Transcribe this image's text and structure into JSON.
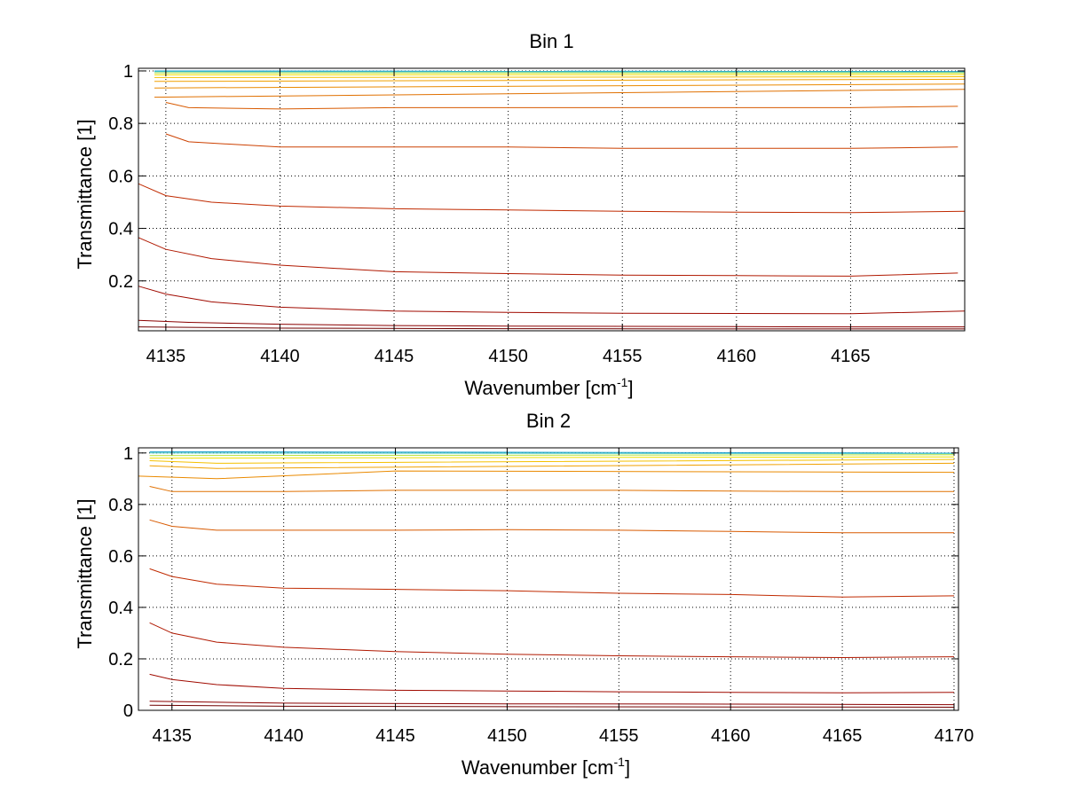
{
  "chart_data": [
    {
      "type": "line",
      "title": "Bin 1",
      "xlabel": {
        "main": "Wavenumber [cm",
        "sup": "-1",
        "close": "]"
      },
      "ylabel": "Transmittance [1]",
      "xlim": [
        4133.8,
        4170
      ],
      "ylim": [
        0.01,
        1.01
      ],
      "xticks": [
        4135,
        4140,
        4145,
        4150,
        4155,
        4160,
        4165
      ],
      "yticks": [
        0.2,
        0.4,
        0.6,
        0.8,
        1
      ],
      "ytick_labels": [
        "0.2",
        "0.4",
        "0.6",
        "0.8",
        "1"
      ],
      "grid": true,
      "series": [
        {
          "color": "#1f9fcf",
          "x": [
            4134.5,
            4170
          ],
          "y": [
            1.0,
            0.998
          ]
        },
        {
          "color": "#3cc3c0",
          "x": [
            4134.5,
            4170
          ],
          "y": [
            0.997,
            0.996
          ]
        },
        {
          "color": "#b5e23a",
          "x": [
            4134.5,
            4170
          ],
          "y": [
            0.992,
            0.992
          ]
        },
        {
          "color": "#f0e000",
          "x": [
            4134.5,
            4170
          ],
          "y": [
            0.985,
            0.986
          ]
        },
        {
          "color": "#f5c000",
          "x": [
            4134.5,
            4170
          ],
          "y": [
            0.975,
            0.978
          ]
        },
        {
          "color": "#f0a000",
          "x": [
            4134.5,
            4170
          ],
          "y": [
            0.96,
            0.968
          ]
        },
        {
          "color": "#ea8a00",
          "x": [
            4134.5,
            4170
          ],
          "y": [
            0.935,
            0.95
          ]
        },
        {
          "color": "#e07000",
          "x": [
            4134.5,
            4170
          ],
          "y": [
            0.9,
            0.93
          ]
        },
        {
          "color": "#d85a00",
          "x": [
            4135,
            4136,
            4140,
            4145,
            4150,
            4155,
            4160,
            4165,
            4169.7
          ],
          "y": [
            0.88,
            0.86,
            0.855,
            0.86,
            0.86,
            0.86,
            0.86,
            0.86,
            0.865
          ]
        },
        {
          "color": "#cc4000",
          "x": [
            4135,
            4136,
            4140,
            4145,
            4150,
            4155,
            4160,
            4165,
            4169.7
          ],
          "y": [
            0.76,
            0.73,
            0.71,
            0.71,
            0.71,
            0.705,
            0.705,
            0.705,
            0.71
          ]
        },
        {
          "color": "#c02a00",
          "x": [
            4133.8,
            4135,
            4137,
            4140,
            4145,
            4150,
            4155,
            4160,
            4165,
            4170
          ],
          "y": [
            0.57,
            0.525,
            0.5,
            0.485,
            0.475,
            0.47,
            0.465,
            0.462,
            0.46,
            0.465
          ]
        },
        {
          "color": "#b01800",
          "x": [
            4133.8,
            4135,
            4137,
            4140,
            4142,
            4145,
            4150,
            4155,
            4160,
            4165,
            4169.7
          ],
          "y": [
            0.365,
            0.32,
            0.285,
            0.26,
            0.25,
            0.235,
            0.228,
            0.222,
            0.22,
            0.218,
            0.23
          ]
        },
        {
          "color": "#a00a00",
          "x": [
            4133.8,
            4135,
            4137,
            4140,
            4145,
            4150,
            4155,
            4160,
            4165,
            4170
          ],
          "y": [
            0.18,
            0.15,
            0.12,
            0.1,
            0.085,
            0.08,
            0.077,
            0.076,
            0.075,
            0.085
          ]
        },
        {
          "color": "#8a0000",
          "x": [
            4133.8,
            4136,
            4140,
            4145,
            4150,
            4155,
            4160,
            4165,
            4170
          ],
          "y": [
            0.05,
            0.042,
            0.035,
            0.03,
            0.028,
            0.027,
            0.026,
            0.025,
            0.025
          ]
        },
        {
          "color": "#700000",
          "x": [
            4133.8,
            4140,
            4150,
            4160,
            4170
          ],
          "y": [
            0.025,
            0.02,
            0.018,
            0.017,
            0.017
          ]
        }
      ]
    },
    {
      "type": "line",
      "title": "Bin 2",
      "xlabel": {
        "main": "Wavenumber [cm",
        "sup": "-1",
        "close": "]"
      },
      "ylabel": "Transmittance [1]",
      "xlim": [
        4133.5,
        4170.2
      ],
      "ylim": [
        0,
        1.02
      ],
      "xticks": [
        4135,
        4140,
        4145,
        4150,
        4155,
        4160,
        4165,
        4170
      ],
      "yticks": [
        0,
        0.2,
        0.4,
        0.6,
        0.8,
        1
      ],
      "ytick_labels": [
        "0",
        "0.2",
        "0.4",
        "0.6",
        "0.8",
        "1"
      ],
      "grid": true,
      "series": [
        {
          "color": "#1f9fcf",
          "x": [
            4134,
            4170
          ],
          "y": [
            1.005,
            1.0
          ]
        },
        {
          "color": "#3cc3c0",
          "x": [
            4134,
            4170
          ],
          "y": [
            1.0,
            0.998
          ]
        },
        {
          "color": "#b5e23a",
          "x": [
            4134,
            4170
          ],
          "y": [
            0.99,
            0.993
          ]
        },
        {
          "color": "#f0e000",
          "x": [
            4134,
            4170
          ],
          "y": [
            0.98,
            0.985
          ]
        },
        {
          "color": "#f5c000",
          "x": [
            4134,
            4137,
            4170
          ],
          "y": [
            0.97,
            0.96,
            0.975
          ]
        },
        {
          "color": "#f0a000",
          "x": [
            4134,
            4137,
            4170
          ],
          "y": [
            0.95,
            0.94,
            0.96
          ]
        },
        {
          "color": "#ea8a00",
          "x": [
            4133.5,
            4137,
            4145,
            4170
          ],
          "y": [
            0.91,
            0.9,
            0.93,
            0.925
          ]
        },
        {
          "color": "#e07000",
          "x": [
            4134,
            4135,
            4140,
            4145,
            4150,
            4155,
            4160,
            4165,
            4170
          ],
          "y": [
            0.87,
            0.85,
            0.85,
            0.855,
            0.855,
            0.855,
            0.852,
            0.85,
            0.85
          ]
        },
        {
          "color": "#d85a00",
          "x": [
            4134,
            4135,
            4137,
            4140,
            4145,
            4150,
            4155,
            4160,
            4165,
            4170
          ],
          "y": [
            0.74,
            0.715,
            0.7,
            0.7,
            0.7,
            0.702,
            0.7,
            0.695,
            0.69,
            0.69
          ]
        },
        {
          "color": "#c02a00",
          "x": [
            4134,
            4135,
            4137,
            4140,
            4145,
            4150,
            4155,
            4160,
            4165,
            4170
          ],
          "y": [
            0.55,
            0.52,
            0.49,
            0.475,
            0.47,
            0.465,
            0.455,
            0.45,
            0.44,
            0.445
          ]
        },
        {
          "color": "#b01800",
          "x": [
            4134,
            4135,
            4137,
            4140,
            4145,
            4150,
            4155,
            4160,
            4165,
            4170
          ],
          "y": [
            0.34,
            0.3,
            0.265,
            0.245,
            0.228,
            0.218,
            0.212,
            0.208,
            0.205,
            0.208
          ]
        },
        {
          "color": "#a00a00",
          "x": [
            4134,
            4135,
            4137,
            4140,
            4145,
            4150,
            4155,
            4160,
            4165,
            4170
          ],
          "y": [
            0.14,
            0.12,
            0.1,
            0.085,
            0.078,
            0.075,
            0.072,
            0.07,
            0.068,
            0.07
          ]
        },
        {
          "color": "#8a0000",
          "x": [
            4134,
            4140,
            4150,
            4160,
            4170
          ],
          "y": [
            0.035,
            0.028,
            0.025,
            0.024,
            0.022
          ]
        },
        {
          "color": "#700000",
          "x": [
            4134,
            4140,
            4150,
            4160,
            4170
          ],
          "y": [
            0.02,
            0.016,
            0.014,
            0.013,
            0.012
          ]
        }
      ]
    }
  ]
}
